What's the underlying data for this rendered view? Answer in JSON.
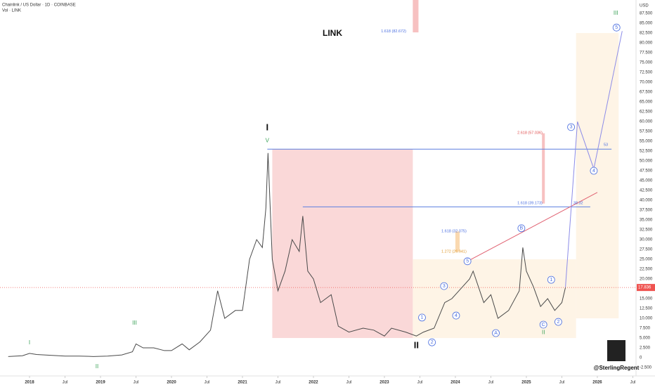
{
  "header": {
    "symbol": "Chainlink / US Dollar · 1D · COINBASE",
    "indicator": "Vol · LINK",
    "author": "@SterlingRegent"
  },
  "chart_data": {
    "type": "line",
    "title": "LINK",
    "y_unit": "USD",
    "color": "#4a4a4a",
    "x": [
      2017.7,
      2017.9,
      2018.0,
      2018.1,
      2018.3,
      2018.5,
      2018.7,
      2018.9,
      2019.1,
      2019.3,
      2019.45,
      2019.5,
      2019.6,
      2019.75,
      2019.9,
      2020.0,
      2020.15,
      2020.25,
      2020.4,
      2020.55,
      2020.65,
      2020.75,
      2020.9,
      2021.0,
      2021.1,
      2021.2,
      2021.28,
      2021.33,
      2021.36,
      2021.42,
      2021.5,
      2021.6,
      2021.7,
      2021.8,
      2021.85,
      2021.92,
      2022.0,
      2022.1,
      2022.25,
      2022.35,
      2022.5,
      2022.7,
      2022.85,
      2023.0,
      2023.1,
      2023.3,
      2023.45,
      2023.55,
      2023.7,
      2023.85,
      2023.95,
      2024.05,
      2024.2,
      2024.25,
      2024.4,
      2024.5,
      2024.6,
      2024.75,
      2024.9,
      2024.95,
      2025.0,
      2025.1,
      2025.2,
      2025.3,
      2025.4,
      2025.5,
      2025.55
    ],
    "values": [
      0.3,
      0.5,
      1.1,
      0.8,
      0.6,
      0.4,
      0.4,
      0.3,
      0.4,
      0.7,
      1.5,
      3.5,
      2.5,
      2.5,
      1.8,
      1.8,
      3.5,
      2.0,
      4.0,
      7,
      17,
      10,
      12,
      12,
      25,
      30,
      28,
      38,
      52,
      25,
      17,
      22,
      30,
      27,
      36,
      22,
      20,
      14,
      16,
      8,
      6.5,
      7.5,
      7,
      5.5,
      7.5,
      6.5,
      5.5,
      6.5,
      7.5,
      14,
      15,
      17,
      20,
      22,
      14,
      16,
      10,
      12,
      17,
      28,
      22,
      18,
      13,
      15,
      12,
      14,
      17.8
    ],
    "xlim": [
      2017.584,
      2026.545
    ],
    "ylim": [
      -3.75,
      90.9
    ],
    "xticks": [
      2018,
      {
        "value": 2018.5,
        "label": "Jul"
      },
      2019,
      {
        "value": 2019.5,
        "label": "Jul"
      },
      2020,
      {
        "value": 2020.5,
        "label": "Jul"
      },
      2021,
      {
        "value": 2021.5,
        "label": "Jul"
      },
      2022,
      {
        "value": 2022.5,
        "label": "Jul"
      },
      2023,
      {
        "value": 2023.5,
        "label": "Jul"
      },
      2024,
      {
        "value": 2024.5,
        "label": "Jul"
      },
      2025,
      {
        "value": 2025.5,
        "label": "Jul"
      },
      2026,
      {
        "value": 2026.5,
        "label": "Jul"
      }
    ],
    "yticks": [
      {
        "value": -2.5,
        "label": "-2.500"
      },
      0,
      {
        "value": 2.5,
        "label": "2.500"
      },
      {
        "value": 5,
        "label": "5.000"
      },
      {
        "value": 7.5,
        "label": "7.500"
      },
      {
        "value": 10,
        "label": "10.000"
      },
      {
        "value": 12.5,
        "label": "12.500"
      },
      {
        "value": 15,
        "label": "15.000"
      },
      {
        "value": 17.5,
        "label": "17.500"
      },
      {
        "value": 20,
        "label": "20.000"
      },
      {
        "value": 22.5,
        "label": "22.500"
      },
      {
        "value": 25,
        "label": "25.000"
      },
      {
        "value": 27.5,
        "label": "27.500"
      },
      {
        "value": 30,
        "label": "30.000"
      },
      {
        "value": 32.5,
        "label": "32.500"
      },
      {
        "value": 35,
        "label": "35.000"
      },
      {
        "value": 37.5,
        "label": "37.500"
      },
      {
        "value": 40,
        "label": "40.000"
      },
      {
        "value": 42.5,
        "label": "42.500"
      },
      {
        "value": 45,
        "label": "45.000"
      },
      {
        "value": 47.5,
        "label": "47.500"
      },
      {
        "value": 50,
        "label": "50.000"
      },
      {
        "value": 52.5,
        "label": "52.500"
      },
      {
        "value": 55,
        "label": "55.000"
      },
      {
        "value": 57.5,
        "label": "57.500"
      },
      {
        "value": 60,
        "label": "60.000"
      },
      {
        "value": 62.5,
        "label": "62.500"
      },
      {
        "value": 65,
        "label": "65.000"
      },
      {
        "value": 67.5,
        "label": "67.500"
      },
      {
        "value": 70,
        "label": "70.000"
      },
      {
        "value": 72.5,
        "label": "72.500"
      },
      {
        "value": 75,
        "label": "75.000"
      },
      {
        "value": 77.5,
        "label": "77.500"
      },
      {
        "value": 80,
        "label": "80.000"
      },
      {
        "value": 82.5,
        "label": "82.500"
      },
      {
        "value": 85,
        "label": "85.000"
      },
      {
        "value": 87.5,
        "label": "87.500"
      }
    ],
    "price_label": {
      "value": 17.836,
      "label": "17.836"
    },
    "zones": [
      {
        "x0": 2021.42,
        "x1": 2023.4,
        "y0": 5,
        "y1": 53,
        "color": "#f8c8c8"
      },
      {
        "x0": 2023.4,
        "x1": 2025.7,
        "y0": 5,
        "y1": 25,
        "color": "#fdf0dc"
      },
      {
        "x0": 2025.7,
        "x1": 2026.3,
        "y0": 10,
        "y1": 82.5,
        "color": "#fdf0dc"
      },
      {
        "x0": 2023.4,
        "x1": 2023.48,
        "y0": 82.672,
        "y1": 90.9,
        "color": "#f4a6a6"
      },
      {
        "x0": 2025.22,
        "x1": 2025.26,
        "y0": 39.173,
        "y1": 57.036,
        "color": "#f4a6a6"
      },
      {
        "x0": 2024.0,
        "x1": 2024.06,
        "y0": 26.941,
        "y1": 32.075,
        "color": "#f8c98f"
      }
    ],
    "lines": [
      {
        "x": [
          2021.35,
          2026.2
        ],
        "y": [
          53,
          53
        ],
        "color": "#5b7fe0"
      },
      {
        "x": [
          2021.85,
          2025.9
        ],
        "y": [
          38.32,
          38.32
        ],
        "color": "#5b7fe0"
      },
      {
        "x": [
          2024.17,
          2026.0
        ],
        "y": [
          24.5,
          42
        ],
        "color": "#e06070"
      },
      {
        "x": [
          2025.55,
          2025.72,
          2025.95,
          2026.35
        ],
        "y": [
          17.8,
          60,
          48,
          83
        ],
        "color": "#8c8ce8"
      }
    ],
    "annotations": [
      {
        "text": "I",
        "x": 2021.35,
        "y": 58.4,
        "style": "big"
      },
      {
        "text": "V",
        "x": 2021.35,
        "y": 55.1,
        "style": "green"
      },
      {
        "text": "II",
        "x": 2023.45,
        "y": 3,
        "style": "big"
      },
      {
        "text": "I",
        "x": 2018.0,
        "y": 3.75,
        "style": "green"
      },
      {
        "text": "II",
        "x": 2018.95,
        "y": -2.3,
        "style": "green"
      },
      {
        "text": "III",
        "x": 2019.48,
        "y": 8.75,
        "style": "green"
      },
      {
        "text": "III",
        "x": 2026.26,
        "y": 87.5,
        "style": "green"
      },
      {
        "text": "II",
        "x": 2025.24,
        "y": 6.4,
        "style": "green"
      },
      {
        "text": "1",
        "x": 2023.53,
        "y": 10.2,
        "style": "circle"
      },
      {
        "text": "2",
        "x": 2023.67,
        "y": 3.9,
        "style": "circle"
      },
      {
        "text": "3",
        "x": 2023.84,
        "y": 18.2,
        "style": "circle"
      },
      {
        "text": "4",
        "x": 2024.01,
        "y": 10.7,
        "style": "circle"
      },
      {
        "text": "5",
        "x": 2024.17,
        "y": 24.5,
        "style": "circle"
      },
      {
        "text": "A",
        "x": 2024.57,
        "y": 6.25,
        "style": "circle"
      },
      {
        "text": "B",
        "x": 2024.93,
        "y": 32.9,
        "style": "circle"
      },
      {
        "text": "C",
        "x": 2025.24,
        "y": 8.4,
        "style": "circle"
      },
      {
        "text": "1",
        "x": 2025.35,
        "y": 19.8,
        "style": "circle"
      },
      {
        "text": "2",
        "x": 2025.45,
        "y": 9.1,
        "style": "circle"
      },
      {
        "text": "3",
        "x": 2025.63,
        "y": 58.6,
        "style": "circle"
      },
      {
        "text": "4",
        "x": 2025.95,
        "y": 47.5,
        "style": "circle"
      },
      {
        "text": "5",
        "x": 2026.27,
        "y": 83.9,
        "style": "circle"
      },
      {
        "text": "1.618 (82.672)",
        "x": 2023.13,
        "y": 82.9,
        "style": "blue"
      },
      {
        "text": "2.618 (57.036)",
        "x": 2025.05,
        "y": 57.1,
        "style": "red"
      },
      {
        "text": "1.618 (39.173)",
        "x": 2025.05,
        "y": 39.3,
        "style": "blue"
      },
      {
        "text": "1.618 (32.075)",
        "x": 2023.98,
        "y": 32.1,
        "style": "blue"
      },
      {
        "text": "1.272 (26.941)",
        "x": 2023.98,
        "y": 27,
        "style": "orange"
      },
      {
        "text": "53",
        "x": 2026.12,
        "y": 54.1,
        "style": "blue"
      },
      {
        "text": "38.32",
        "x": 2025.73,
        "y": 39.3,
        "style": "blue"
      }
    ]
  }
}
